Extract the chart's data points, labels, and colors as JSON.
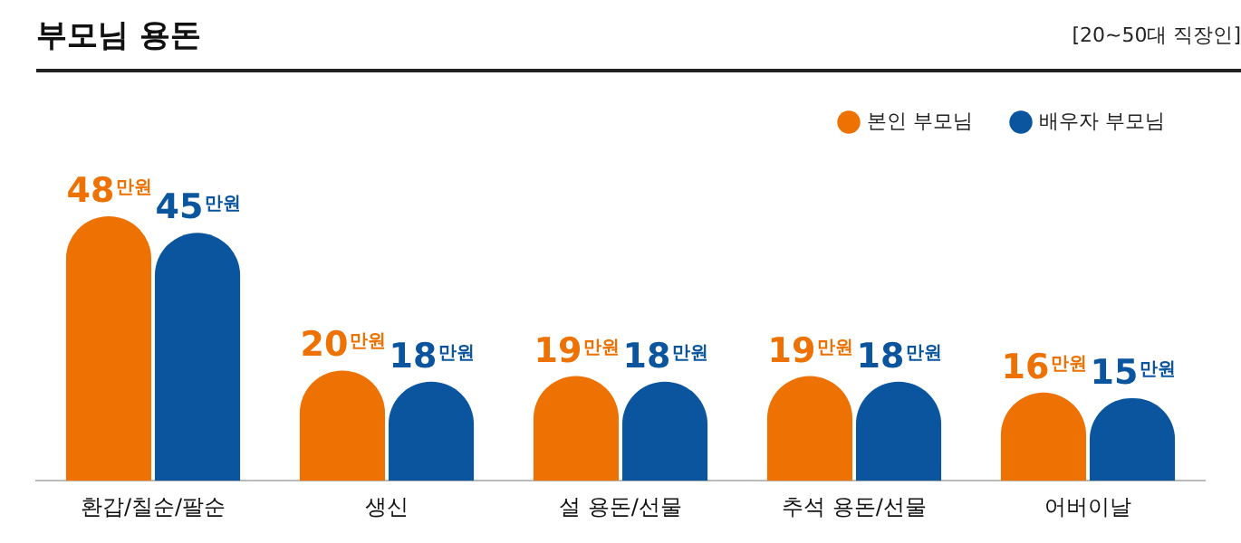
{
  "chart_data": {
    "type": "bar",
    "title": "부모님 용돈",
    "subtitle": "[20~50대 직장인]",
    "categories": [
      "환갑/칠순/팔순",
      "생신",
      "설 용돈/선물",
      "추석 용돈/선물",
      "어버이날"
    ],
    "series": [
      {
        "name": "본인 부모님",
        "color": "#ee7203",
        "values": [
          48,
          20,
          19,
          19,
          16
        ],
        "value_labels": [
          "48만원",
          "20만원",
          "19만원",
          "19만원",
          "16만원"
        ]
      },
      {
        "name": "배우자 부모님",
        "color": "#0b559f",
        "values": [
          45,
          18,
          18,
          18,
          15
        ],
        "value_labels": [
          "45만원",
          "18만원",
          "18만원",
          "18만원",
          "15만원"
        ]
      }
    ],
    "legend": "top right",
    "tick_labels": "x",
    "grid": false
  }
}
